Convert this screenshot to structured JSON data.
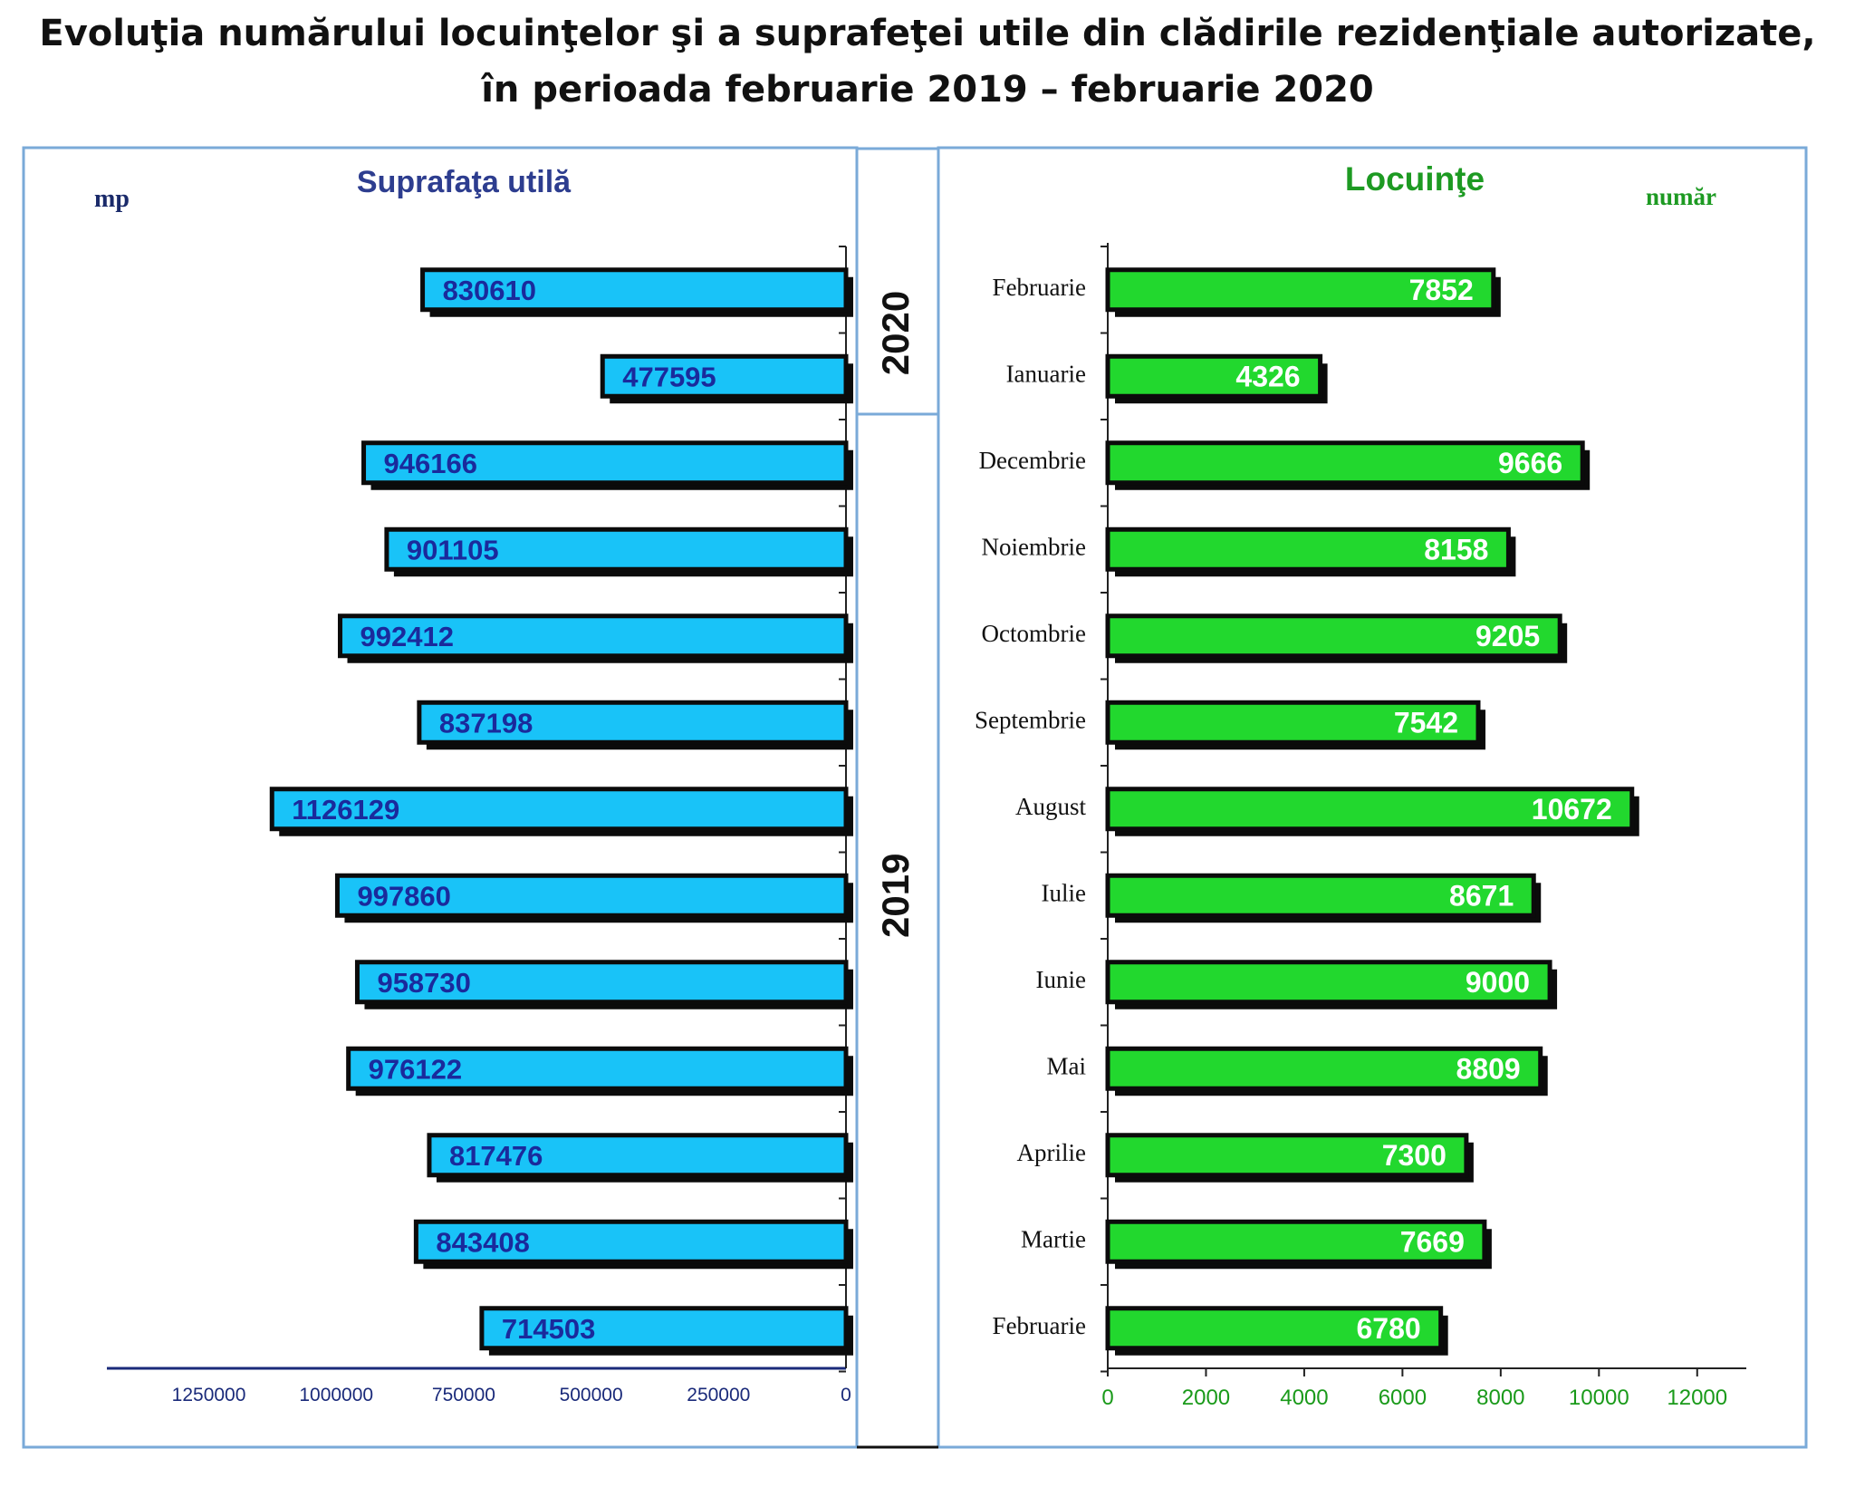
{
  "title_line1": "Evoluţia numărului locuinţelor şi a suprafeţei utile din clădirile rezidenţiale autorizate,",
  "title_line2": "în perioada februarie 2019 – februarie 2020",
  "colors": {
    "frame": "#7aaad8",
    "area_bar": "#19c3f8",
    "area_label": "#1a2a9c",
    "dwell_bar": "#22d82e",
    "dwell_label": "#ffffff",
    "area_title": "#2d3d8f",
    "dwell_title": "#1d9a22",
    "axis_left": "#1a2a7a",
    "axis_right_text": "#1a9a1a"
  },
  "chart_data": [
    {
      "type": "bar",
      "orientation": "horizontal-reversed",
      "title": "Suprafaţa utilă",
      "unit_label": "mp",
      "categories": [
        "Februarie",
        "Ianuarie",
        "Decembrie",
        "Noiembrie",
        "Octombrie",
        "Septembrie",
        "August",
        "Iulie",
        "Iunie",
        "Mai",
        "Aprilie",
        "Martie",
        "Februarie"
      ],
      "values": [
        830610,
        477595,
        946166,
        901105,
        992412,
        837198,
        1126129,
        997860,
        958730,
        976122,
        817476,
        843408,
        714503
      ],
      "xlim": [
        0,
        1450000
      ],
      "ticks": [
        1250000,
        1000000,
        750000,
        500000,
        250000,
        0
      ],
      "grid": false
    },
    {
      "type": "bar",
      "orientation": "horizontal",
      "title": "Locuinţe",
      "unit_label": "număr",
      "categories": [
        "Februarie",
        "Ianuarie",
        "Decembrie",
        "Noiembrie",
        "Octombrie",
        "Septembrie",
        "August",
        "Iulie",
        "Iunie",
        "Mai",
        "Aprilie",
        "Martie",
        "Februarie"
      ],
      "values": [
        7852,
        4326,
        9666,
        8158,
        9205,
        7542,
        10672,
        8671,
        9000,
        8809,
        7300,
        7669,
        6780
      ],
      "xlim": [
        0,
        13000
      ],
      "ticks": [
        0,
        2000,
        4000,
        6000,
        8000,
        10000,
        12000
      ],
      "grid": false
    }
  ],
  "year_labels": [
    {
      "text": "2020",
      "rows": [
        0,
        1
      ]
    },
    {
      "text": "2019",
      "rows": [
        2,
        12
      ]
    }
  ]
}
